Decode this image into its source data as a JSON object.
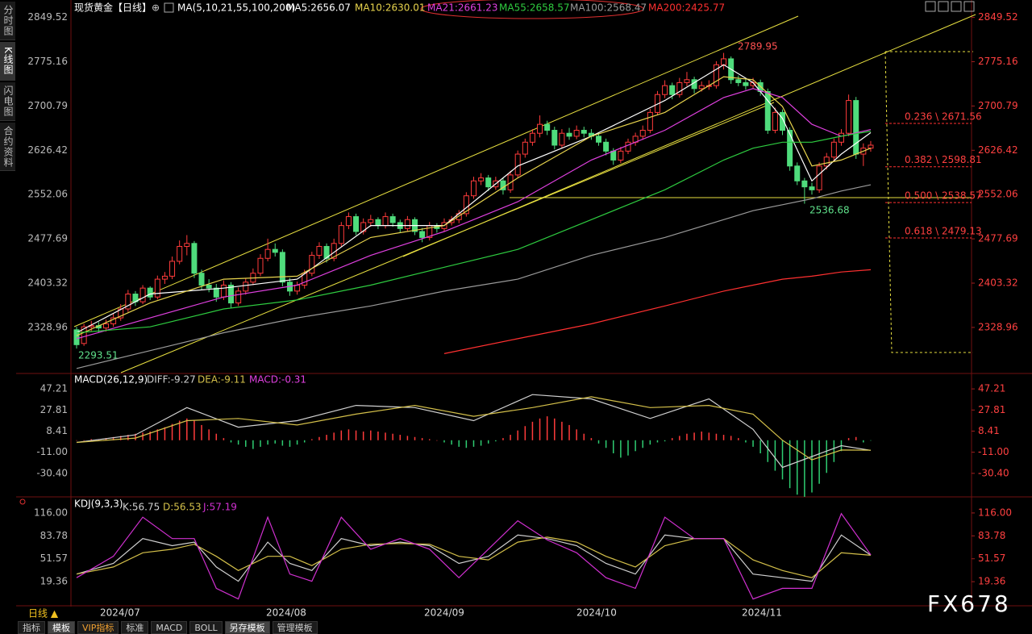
{
  "title": "现货黄金【日线】",
  "sidebar": [
    "分时图",
    "K线图",
    "闪电图",
    "合约资料"
  ],
  "period": "日线 ▲",
  "tabs": [
    "指标",
    "模板",
    "VIP指标",
    "标准",
    "MACD",
    "BOLL",
    "另存模板",
    "管理模板"
  ],
  "watermark": "FX678",
  "chart_data": [
    {
      "type": "candlestick",
      "indicator": "MA(5,10,21,55,100,200)",
      "ylim": [
        2253,
        2872
      ],
      "yticks": [
        2849.52,
        2775.16,
        2700.79,
        2626.42,
        2552.06,
        2477.69,
        2403.32,
        2328.96
      ],
      "up_color": "#ff3b3b",
      "down_color": "#4fdc7c",
      "date_labels": [
        "2024/07",
        "2024/08",
        "2024/09",
        "2024/10",
        "2024/11"
      ],
      "annotations": {
        "high": 2789.95,
        "low": 2536.68,
        "start_low": 2293.51
      },
      "fib_levels": [
        {
          "value": 2671.56,
          "label": "0.236 \\ 2671.56"
        },
        {
          "value": 2598.81,
          "label": "0.382 \\ 2598.81"
        },
        {
          "value": 2538.57,
          "label": "0.500 \\ 2538.57"
        },
        {
          "value": 2479.13,
          "label": "0.618 \\ 2479.13"
        }
      ],
      "candles": [
        [
          2325,
          2330,
          2293.51,
          2300
        ],
        [
          2302,
          2335,
          2298,
          2330
        ],
        [
          2330,
          2340,
          2322,
          2332
        ],
        [
          2332,
          2338,
          2320,
          2328
        ],
        [
          2328,
          2342,
          2322,
          2335
        ],
        [
          2335,
          2352,
          2330,
          2345
        ],
        [
          2345,
          2368,
          2340,
          2360
        ],
        [
          2360,
          2392,
          2355,
          2385
        ],
        [
          2385,
          2390,
          2365,
          2372
        ],
        [
          2372,
          2400,
          2368,
          2395
        ],
        [
          2395,
          2398,
          2375,
          2380
        ],
        [
          2380,
          2416,
          2376,
          2410
        ],
        [
          2410,
          2422,
          2402,
          2415
        ],
        [
          2415,
          2448,
          2410,
          2440
        ],
        [
          2440,
          2475,
          2435,
          2465
        ],
        [
          2465,
          2484,
          2450,
          2470
        ],
        [
          2470,
          2474,
          2412,
          2420
        ],
        [
          2420,
          2426,
          2392,
          2400
        ],
        [
          2400,
          2410,
          2388,
          2395
        ],
        [
          2395,
          2402,
          2372,
          2380
        ],
        [
          2380,
          2408,
          2375,
          2400
        ],
        [
          2400,
          2405,
          2362,
          2370
        ],
        [
          2370,
          2396,
          2365,
          2390
        ],
        [
          2390,
          2412,
          2384,
          2405
        ],
        [
          2405,
          2428,
          2400,
          2420
        ],
        [
          2420,
          2452,
          2415,
          2445
        ],
        [
          2445,
          2478,
          2440,
          2460
        ],
        [
          2460,
          2470,
          2448,
          2455
        ],
        [
          2455,
          2460,
          2398,
          2405
        ],
        [
          2405,
          2412,
          2382,
          2390
        ],
        [
          2390,
          2406,
          2384,
          2400
        ],
        [
          2400,
          2426,
          2394,
          2420
        ],
        [
          2420,
          2456,
          2415,
          2450
        ],
        [
          2450,
          2472,
          2444,
          2465
        ],
        [
          2465,
          2470,
          2438,
          2445
        ],
        [
          2445,
          2478,
          2440,
          2470
        ],
        [
          2470,
          2506,
          2465,
          2500
        ],
        [
          2500,
          2522,
          2494,
          2515
        ],
        [
          2515,
          2520,
          2484,
          2490
        ],
        [
          2490,
          2512,
          2485,
          2505
        ],
        [
          2505,
          2518,
          2498,
          2510
        ],
        [
          2510,
          2514,
          2494,
          2500
        ],
        [
          2500,
          2522,
          2495,
          2515
        ],
        [
          2515,
          2520,
          2498,
          2505
        ],
        [
          2505,
          2510,
          2488,
          2495
        ],
        [
          2495,
          2516,
          2490,
          2510
        ],
        [
          2510,
          2514,
          2484,
          2490
        ],
        [
          2490,
          2496,
          2472,
          2480
        ],
        [
          2480,
          2506,
          2475,
          2500
        ],
        [
          2500,
          2504,
          2488,
          2495
        ],
        [
          2495,
          2512,
          2490,
          2505
        ],
        [
          2505,
          2516,
          2500,
          2510
        ],
        [
          2510,
          2526,
          2504,
          2520
        ],
        [
          2520,
          2556,
          2515,
          2550
        ],
        [
          2550,
          2582,
          2545,
          2575
        ],
        [
          2575,
          2588,
          2568,
          2580
        ],
        [
          2580,
          2585,
          2558,
          2565
        ],
        [
          2565,
          2582,
          2560,
          2575
        ],
        [
          2575,
          2580,
          2552,
          2560
        ],
        [
          2560,
          2592,
          2555,
          2585
        ],
        [
          2585,
          2626,
          2580,
          2620
        ],
        [
          2620,
          2646,
          2614,
          2640
        ],
        [
          2640,
          2662,
          2634,
          2655
        ],
        [
          2655,
          2685,
          2648,
          2670
        ],
        [
          2670,
          2676,
          2652,
          2660
        ],
        [
          2660,
          2666,
          2628,
          2635
        ],
        [
          2635,
          2662,
          2630,
          2655
        ],
        [
          2655,
          2664,
          2644,
          2650
        ],
        [
          2650,
          2668,
          2645,
          2660
        ],
        [
          2660,
          2666,
          2648,
          2655
        ],
        [
          2655,
          2662,
          2644,
          2650
        ],
        [
          2650,
          2656,
          2634,
          2640
        ],
        [
          2640,
          2646,
          2618,
          2625
        ],
        [
          2625,
          2630,
          2602,
          2610
        ],
        [
          2610,
          2632,
          2605,
          2625
        ],
        [
          2625,
          2646,
          2620,
          2640
        ],
        [
          2640,
          2656,
          2634,
          2650
        ],
        [
          2650,
          2668,
          2644,
          2660
        ],
        [
          2660,
          2696,
          2655,
          2690
        ],
        [
          2690,
          2726,
          2685,
          2720
        ],
        [
          2720,
          2744,
          2714,
          2735
        ],
        [
          2735,
          2740,
          2712,
          2720
        ],
        [
          2720,
          2748,
          2715,
          2740
        ],
        [
          2740,
          2758,
          2734,
          2745
        ],
        [
          2745,
          2750,
          2722,
          2730
        ],
        [
          2730,
          2742,
          2725,
          2735
        ],
        [
          2735,
          2744,
          2728,
          2735
        ],
        [
          2735,
          2776,
          2730,
          2770
        ],
        [
          2770,
          2789.95,
          2762,
          2780
        ],
        [
          2780,
          2784,
          2738,
          2745
        ],
        [
          2745,
          2752,
          2734,
          2740
        ],
        [
          2740,
          2746,
          2728,
          2735
        ],
        [
          2735,
          2748,
          2730,
          2740
        ],
        [
          2740,
          2745,
          2718,
          2725
        ],
        [
          2725,
          2730,
          2654,
          2660
        ],
        [
          2660,
          2698,
          2655,
          2690
        ],
        [
          2690,
          2695,
          2652,
          2660
        ],
        [
          2660,
          2665,
          2592,
          2600
        ],
        [
          2600,
          2606,
          2568,
          2575
        ],
        [
          2575,
          2580,
          2536.68,
          2565
        ],
        [
          2565,
          2572,
          2552,
          2560
        ],
        [
          2560,
          2606,
          2555,
          2600
        ],
        [
          2600,
          2622,
          2594,
          2615
        ],
        [
          2615,
          2646,
          2608,
          2640
        ],
        [
          2640,
          2662,
          2634,
          2655
        ],
        [
          2655,
          2720,
          2650,
          2710
        ],
        [
          2710,
          2716,
          2612,
          2620
        ],
        [
          2620,
          2638,
          2600,
          2630
        ],
        [
          2630,
          2642,
          2624,
          2635
        ]
      ],
      "x": [
        0,
        10,
        20,
        30,
        40,
        50,
        60,
        70,
        80,
        88,
        92,
        96,
        100,
        104,
        108
      ],
      "series": [
        {
          "name": "MA5:2656.07",
          "color": "#ffffff",
          "values": [
            2320,
            2385,
            2395,
            2410,
            2500,
            2500,
            2600,
            2650,
            2710,
            2770,
            2740,
            2680,
            2575,
            2620,
            2656.07
          ]
        },
        {
          "name": "MA10:2630.01",
          "color": "#e8d44d",
          "values": [
            2315,
            2370,
            2410,
            2415,
            2480,
            2500,
            2580,
            2650,
            2690,
            2750,
            2745,
            2700,
            2600,
            2610,
            2630.01
          ]
        },
        {
          "name": "MA21:2661.23",
          "color": "#e040e0",
          "values": [
            2310,
            2345,
            2380,
            2400,
            2450,
            2490,
            2540,
            2610,
            2660,
            2715,
            2730,
            2715,
            2670,
            2650,
            2661.23
          ]
        },
        {
          "name": "MA55:2658.57",
          "color": "#2ecc40",
          "values": [
            2320,
            2330,
            2360,
            2375,
            2400,
            2430,
            2460,
            2510,
            2560,
            2610,
            2630,
            2640,
            2640,
            2650,
            2658.57
          ]
        },
        {
          "name": "MA100:2568.47",
          "color": "#9a9a9a",
          "values": [
            2260,
            2290,
            2320,
            2345,
            2365,
            2390,
            2410,
            2450,
            2480,
            2510,
            2525,
            2535,
            2545,
            2558,
            2568.47
          ]
        },
        {
          "name": "MA200:2425.77",
          "color": "#ff3030",
          "values": [
            null,
            null,
            null,
            null,
            null,
            2285,
            2310,
            2335,
            2365,
            2390,
            2400,
            2410,
            2415,
            2422,
            2425.77
          ]
        }
      ]
    },
    {
      "type": "macd",
      "indicator": "MACD(26,12,9)",
      "ylim": [
        -51.3,
        56.2
      ],
      "yticks": [
        47.21,
        27.81,
        8.41,
        {
          "value": -11,
          "label": "-11.00"
        },
        {
          "value": -30.4,
          "label": "-30.40"
        }
      ],
      "x": [
        0,
        8,
        15,
        22,
        30,
        38,
        46,
        54,
        62,
        70,
        78,
        86,
        92,
        96,
        100,
        104,
        108
      ],
      "series": [
        {
          "name": "DIFF:-9.27",
          "color": "#d0d0d0",
          "values": [
            -2,
            5,
            30,
            12,
            18,
            32,
            30,
            18,
            42,
            38,
            20,
            38,
            10,
            -25,
            -15,
            -5,
            -9.27
          ]
        },
        {
          "name": "DEA:-9.11",
          "color": "#d4c04a",
          "values": [
            -2,
            2,
            18,
            20,
            14,
            24,
            32,
            22,
            30,
            40,
            30,
            32,
            24,
            0,
            -18,
            -9,
            -9.11
          ]
        }
      ],
      "histogram": {
        "name": "MACD:-0.31",
        "up_color": "#ff3b3b",
        "down_color": "#2ecc71",
        "values": [
          0,
          0,
          1,
          1,
          2,
          3,
          4,
          5,
          6,
          7,
          8,
          10,
          12,
          15,
          18,
          20,
          18,
          14,
          10,
          6,
          2,
          -2,
          -4,
          -6,
          -8,
          -6,
          -4,
          -3,
          -5,
          -6,
          -4,
          -2,
          1,
          3,
          5,
          7,
          9,
          10,
          9,
          8,
          9,
          8,
          7,
          6,
          5,
          4,
          3,
          2,
          1,
          0,
          -2,
          -4,
          -6,
          -7,
          -6,
          -5,
          -3,
          -1,
          2,
          5,
          9,
          13,
          17,
          20,
          22,
          20,
          17,
          14,
          10,
          6,
          2,
          -3,
          -7,
          -12,
          -16,
          -14,
          -10,
          -7,
          -4,
          -2,
          -1,
          2,
          4,
          6,
          7,
          8,
          7,
          6,
          5,
          4,
          2,
          -2,
          -6,
          -12,
          -20,
          -28,
          -36,
          -44,
          -50,
          -52,
          -48,
          -40,
          -30,
          -20,
          -10,
          2,
          3,
          -2,
          -0.31
        ]
      }
    },
    {
      "type": "kdj",
      "indicator": "KDJ(9,3,3)",
      "ylim": [
        -13.4,
        125
      ],
      "yticks": [
        {
          "value": 116,
          "label": "116.00"
        },
        83.78,
        51.57,
        19.36
      ],
      "x": [
        0,
        5,
        9,
        13,
        16,
        19,
        22,
        26,
        29,
        32,
        36,
        40,
        44,
        48,
        52,
        56,
        60,
        64,
        68,
        72,
        76,
        80,
        84,
        88,
        92,
        96,
        100,
        104,
        108
      ],
      "series": [
        {
          "name": "K:56.75",
          "color": "#d0d0d0",
          "values": [
            30,
            45,
            80,
            70,
            75,
            40,
            20,
            75,
            45,
            35,
            80,
            70,
            75,
            70,
            45,
            55,
            85,
            80,
            70,
            45,
            30,
            85,
            80,
            80,
            30,
            25,
            20,
            85,
            56.75
          ]
        },
        {
          "name": "D:56.53",
          "color": "#d4c04a",
          "values": [
            30,
            40,
            60,
            65,
            72,
            55,
            35,
            55,
            55,
            42,
            65,
            72,
            73,
            72,
            55,
            50,
            75,
            82,
            75,
            55,
            40,
            70,
            80,
            80,
            50,
            35,
            25,
            60,
            56.53
          ]
        },
        {
          "name": "J:57.19",
          "color": "#d030d0",
          "values": [
            25,
            55,
            110,
            80,
            80,
            10,
            -5,
            110,
            30,
            20,
            110,
            65,
            80,
            65,
            25,
            65,
            105,
            78,
            60,
            25,
            10,
            110,
            80,
            80,
            -5,
            10,
            10,
            115,
            57.19
          ]
        }
      ]
    }
  ]
}
